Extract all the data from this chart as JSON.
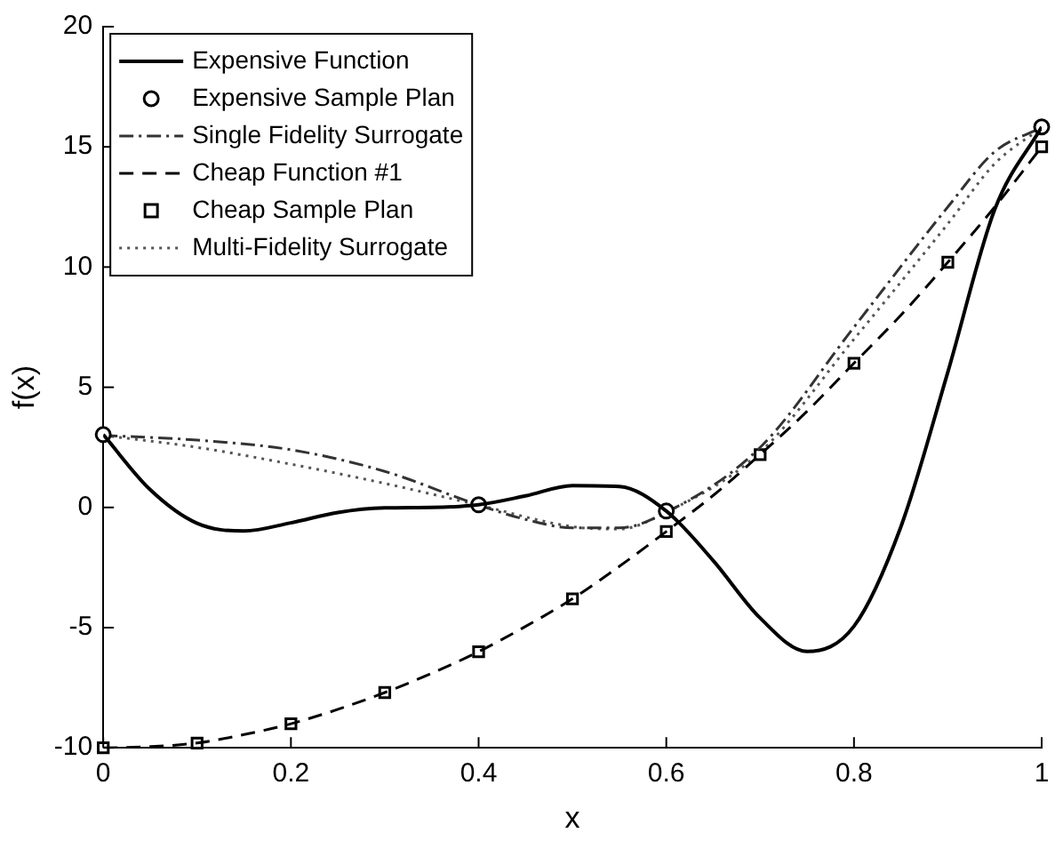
{
  "chart_data": {
    "type": "line",
    "xlabel": "x",
    "ylabel": "f(x)",
    "xlim": [
      0,
      1
    ],
    "ylim": [
      -10,
      20
    ],
    "xticks": [
      0,
      0.2,
      0.4,
      0.6,
      0.8,
      1
    ],
    "yticks": [
      -10,
      -5,
      0,
      5,
      10,
      15,
      20
    ],
    "grid": false,
    "legend": "top left",
    "series": [
      {
        "name": "Expensive Function",
        "line_style": "solid",
        "color": "#000000",
        "x": [
          0,
          0.05,
          0.1,
          0.15,
          0.2,
          0.25,
          0.3,
          0.35,
          0.4,
          0.45,
          0.5,
          0.55,
          0.6,
          0.65,
          0.7,
          0.75,
          0.8,
          0.85,
          0.9,
          0.95,
          1
        ],
        "values": [
          3.03,
          0.74,
          -0.66,
          -0.98,
          -0.64,
          -0.21,
          -0.02,
          0.0,
          0.11,
          0.48,
          0.91,
          0.87,
          -0.15,
          -2.21,
          -4.6,
          -5.99,
          -4.94,
          -0.8,
          5.63,
          12.4,
          15.83
        ]
      },
      {
        "name": "Expensive Sample Plan",
        "type": "scatter",
        "marker": "circle",
        "color": "#000000",
        "x": [
          0,
          0.4,
          0.6,
          1
        ],
        "values": [
          3.03,
          0.11,
          -0.15,
          15.83
        ]
      },
      {
        "name": "Single Fidelity Surrogate",
        "line_style": "dashdot",
        "color": "#333333",
        "x": [
          0,
          0.1,
          0.2,
          0.3,
          0.4,
          0.45,
          0.5,
          0.55,
          0.6,
          0.7,
          0.8,
          0.9,
          0.95,
          1
        ],
        "values": [
          3.0,
          2.8,
          2.4,
          1.5,
          0.1,
          -0.5,
          -0.85,
          -0.85,
          -0.2,
          2.5,
          7.5,
          12.5,
          14.8,
          15.8
        ]
      },
      {
        "name": "Cheap Function #1",
        "line_style": "dashed",
        "color": "#000000",
        "x": [
          0,
          0.05,
          0.1,
          0.15,
          0.2,
          0.25,
          0.3,
          0.35,
          0.4,
          0.45,
          0.5,
          0.55,
          0.6,
          0.65,
          0.7,
          0.75,
          0.8,
          0.85,
          0.9,
          0.95,
          1
        ],
        "values": [
          -10,
          -9.95,
          -9.8,
          -9.45,
          -9,
          -8.4,
          -7.7,
          -6.9,
          -6,
          -4.95,
          -3.8,
          -2.45,
          -1,
          0.5,
          2.2,
          4.0,
          6,
          8.0,
          10.2,
          12.5,
          15
        ]
      },
      {
        "name": "Cheap Sample Plan",
        "type": "scatter",
        "marker": "square",
        "color": "#000000",
        "x": [
          0,
          0.1,
          0.2,
          0.3,
          0.4,
          0.5,
          0.6,
          0.7,
          0.8,
          0.9,
          1
        ],
        "values": [
          -10,
          -9.8,
          -9,
          -7.7,
          -6,
          -3.8,
          -1,
          2.2,
          6,
          10.2,
          15
        ]
      },
      {
        "name": "Multi-Fidelity Surrogate",
        "line_style": "dotted",
        "color": "#555555",
        "x": [
          0,
          0.1,
          0.2,
          0.3,
          0.4,
          0.5,
          0.55,
          0.6,
          0.7,
          0.8,
          0.9,
          0.95,
          1
        ],
        "values": [
          3.0,
          2.5,
          1.8,
          1.0,
          0.1,
          -0.8,
          -0.9,
          -0.2,
          2.3,
          7,
          11.8,
          14.3,
          15.8
        ]
      }
    ]
  }
}
